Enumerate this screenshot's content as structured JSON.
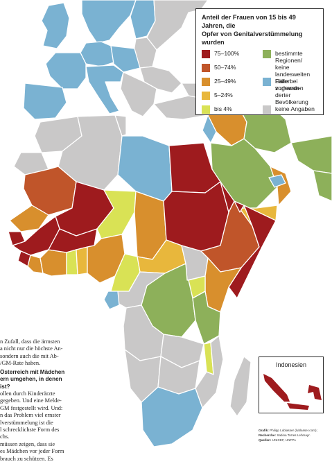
{
  "colors": {
    "c75_100": "#9e1b1e",
    "c50_74": "#c0552a",
    "c25_49": "#d88f2d",
    "c5_24": "#e8b73c",
    "c_bis4": "#d9e255",
    "regional": "#8db05a",
    "diaspora": "#7ab2d2",
    "no_data": "#c9c8c8",
    "border": "#ffffff",
    "water": "#ffffff"
  },
  "legend": {
    "title": "Anteil der Frauen von 15 bis 49 Jahren, die\nOpfer von Genitalverstümmelung wurden",
    "items": [
      {
        "label": "75–100%",
        "color": "#9e1b1e"
      },
      {
        "label": "50–74%",
        "color": "#c0552a"
      },
      {
        "label": "25–49%",
        "color": "#d88f2d"
      },
      {
        "label": "5–24%",
        "color": "#e8b73c"
      },
      {
        "label": "bis 4%",
        "color": "#d9e255"
      },
      {
        "label": "bestimmte Regionen/\nkeine landesweiten\nDaten vorhanden",
        "color": "#8db05a"
      },
      {
        "label": "Fälle bei zugewan-\nderter Bevölkerung",
        "color": "#7ab2d2"
      },
      {
        "label": "keine Angaben",
        "color": "#c9c8c8"
      }
    ]
  },
  "inset": {
    "title": "Indonesien"
  },
  "credits": {
    "line1_label": "Grafik:",
    "line1_text": "Philipp Lublasser (lublasser.com);",
    "line2_label": "Recherche:",
    "line2_text": "Sabina Torres Lehmayr.",
    "line3_label": "Quellen:",
    "line3_text": "UNICEF, UNFPA"
  },
  "article": {
    "p1": [
      "n Zufall, dass die ärmsten",
      "a nicht nur die höchste An-",
      " sondern auch die mit Ab-",
      "/GM-Rate haben."
    ],
    "question": [
      "Österreich mit Mädchen",
      "ern umgehen, in denen",
      " ist?"
    ],
    "p2": [
      "ollen durch Kinderärzte",
      "gegeben. Und eine Melde-",
      "GM festgestellt wird. Und:",
      "n das Problem viel ernster",
      "lverstümmelung ist die",
      "l schrecklichste Form des",
      "chs.",
      " müssen zeigen, dass sie",
      "es Mädchen vor jeder Form",
      "brauch zu schützen. Es"
    ]
  }
}
